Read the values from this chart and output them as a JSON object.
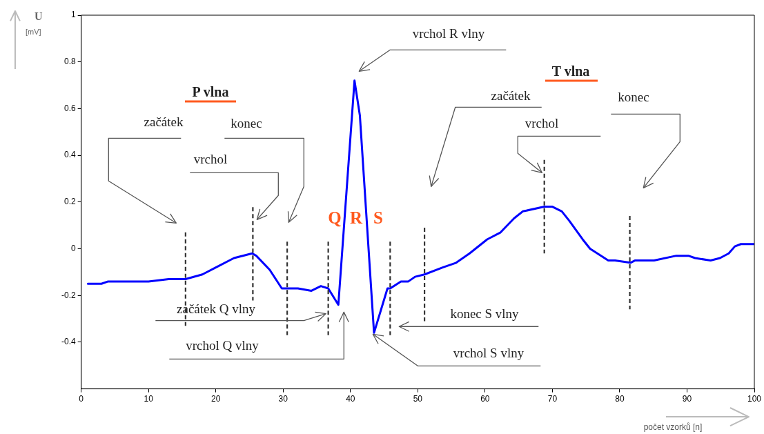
{
  "chart_data": {
    "type": "line",
    "xlabel": "počet vzorků [n]",
    "ylabel": "U [mV]",
    "x": [
      1,
      3,
      4,
      7,
      10,
      13,
      15.5,
      18,
      20,
      22.7,
      25.4,
      26,
      28,
      29.8,
      32.2,
      34.2,
      35.6,
      36.7,
      38.2,
      40.6,
      41.4,
      43.5,
      45.5,
      45.9,
      47.5,
      48.6,
      49.6,
      51,
      53.7,
      55.7,
      57.7,
      60.3,
      62.3,
      64.3,
      65.6,
      68.8,
      70,
      71.4,
      72.5,
      74.5,
      75.6,
      78.3,
      79.3,
      81.6,
      82.3,
      85.1,
      88.4,
      90.2,
      91.2,
      93.5,
      94.9,
      96.2,
      97.1,
      98,
      100
    ],
    "series": [
      {
        "color": "#0000ff",
        "values": [
          -0.15,
          -0.15,
          -0.14,
          -0.14,
          -0.14,
          -0.13,
          -0.13,
          -0.11,
          -0.08,
          -0.04,
          -0.02,
          -0.03,
          -0.09,
          -0.17,
          -0.17,
          -0.18,
          -0.16,
          -0.17,
          -0.24,
          0.72,
          0.57,
          -0.36,
          -0.17,
          -0.17,
          -0.14,
          -0.14,
          -0.12,
          -0.11,
          -0.08,
          -0.06,
          -0.02,
          0.04,
          0.07,
          0.13,
          0.16,
          0.18,
          0.18,
          0.16,
          0.12,
          0.04,
          0.0,
          -0.05,
          -0.05,
          -0.06,
          -0.05,
          -0.05,
          -0.03,
          -0.03,
          -0.04,
          -0.05,
          -0.04,
          -0.02,
          0.01,
          0.02,
          0.02
        ]
      }
    ],
    "xlim": [
      0,
      100
    ],
    "xticks": [
      0,
      10,
      20,
      30,
      40,
      50,
      60,
      70,
      80,
      90,
      100
    ],
    "ylim": [
      -0.6,
      1
    ],
    "yticks": [
      -0.4,
      -0.2,
      0,
      0.2,
      0.4,
      0.6,
      0.8,
      1
    ],
    "grid": false,
    "legend": false,
    "marker": "none",
    "line_style": "solid",
    "ref_lines": [
      {
        "axis": "x",
        "value": 15.5,
        "line_style": "dashed",
        "color": "#333333"
      },
      {
        "axis": "x",
        "value": 25.5,
        "line_style": "dashed",
        "color": "#333333"
      },
      {
        "axis": "x",
        "value": 30.6,
        "line_style": "dashed",
        "color": "#333333"
      },
      {
        "axis": "x",
        "value": 36.7,
        "line_style": "dashed",
        "color": "#333333"
      },
      {
        "axis": "x",
        "value": 45.9,
        "line_style": "dashed",
        "color": "#333333"
      },
      {
        "axis": "x",
        "value": 51,
        "line_style": "dashed",
        "color": "#333333"
      },
      {
        "axis": "x",
        "value": 68.8,
        "line_style": "dashed",
        "color": "#333333"
      },
      {
        "axis": "x",
        "value": 81.5,
        "line_style": "dashed",
        "color": "#333333"
      }
    ],
    "annotations": [
      "P vlna",
      "začátek",
      "vrchol",
      "konec",
      "Q",
      "R",
      "S",
      "vrchol R vlny",
      "začátek Q vlny",
      "vrchol Q vlny",
      "konec S vlny",
      "vrchol S vlny",
      "T vlna",
      "začátek",
      "vrchol",
      "konec"
    ]
  }
}
